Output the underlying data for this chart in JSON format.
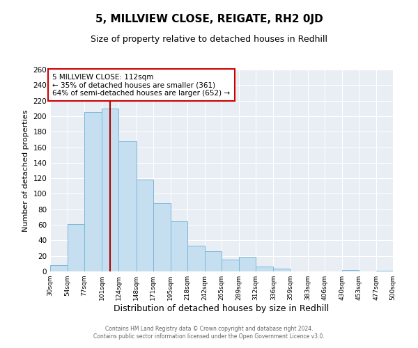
{
  "title": "5, MILLVIEW CLOSE, REIGATE, RH2 0JD",
  "subtitle": "Size of property relative to detached houses in Redhill",
  "xlabel": "Distribution of detached houses by size in Redhill",
  "ylabel": "Number of detached properties",
  "bin_edges": [
    30,
    54,
    77,
    101,
    124,
    148,
    171,
    195,
    218,
    242,
    265,
    289,
    312,
    336,
    359,
    383,
    406,
    430,
    453,
    477,
    500
  ],
  "bar_heights": [
    8,
    61,
    205,
    210,
    168,
    118,
    88,
    65,
    33,
    26,
    15,
    19,
    6,
    4,
    0,
    0,
    0,
    2,
    0,
    1
  ],
  "bar_color": "#c6dff0",
  "bar_edge_color": "#7ab8d9",
  "marker_value": 112,
  "marker_color": "#aa0000",
  "annotation_title": "5 MILLVIEW CLOSE: 112sqm",
  "annotation_line1": "← 35% of detached houses are smaller (361)",
  "annotation_line2": "64% of semi-detached houses are larger (652) →",
  "annotation_box_color": "#ffffff",
  "annotation_box_edge_color": "#cc0000",
  "ylim": [
    0,
    260
  ],
  "yticks": [
    0,
    20,
    40,
    60,
    80,
    100,
    120,
    140,
    160,
    180,
    200,
    220,
    240,
    260
  ],
  "tick_labels": [
    "30sqm",
    "54sqm",
    "77sqm",
    "101sqm",
    "124sqm",
    "148sqm",
    "171sqm",
    "195sqm",
    "218sqm",
    "242sqm",
    "265sqm",
    "289sqm",
    "312sqm",
    "336sqm",
    "359sqm",
    "383sqm",
    "406sqm",
    "430sqm",
    "453sqm",
    "477sqm",
    "500sqm"
  ],
  "footer_line1": "Contains HM Land Registry data © Crown copyright and database right 2024.",
  "footer_line2": "Contains public sector information licensed under the Open Government Licence v3.0.",
  "background_color": "#ffffff",
  "plot_bg_color": "#e8eef4",
  "grid_color": "#ffffff",
  "title_fontsize": 11,
  "subtitle_fontsize": 9,
  "ylabel_fontsize": 8,
  "xlabel_fontsize": 9
}
